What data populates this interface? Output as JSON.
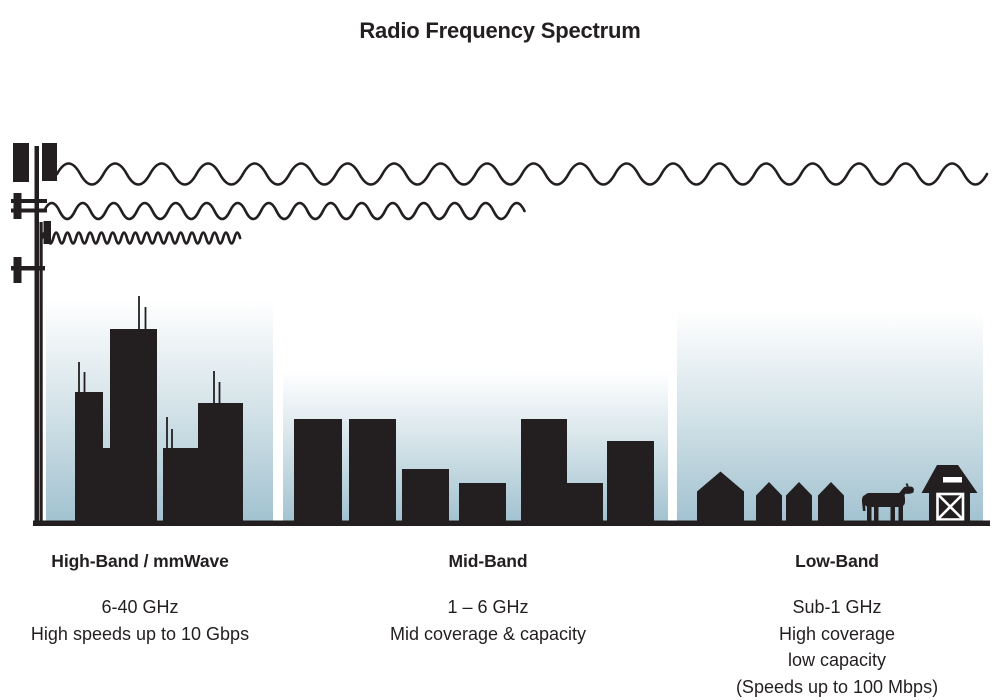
{
  "title": "Radio Frequency Spectrum",
  "colors": {
    "ink": "#231f20",
    "sky_top": "#ffffff",
    "sky_mid": "#d7e5ea",
    "sky_bottom": "#a2c2d0"
  },
  "bands": [
    {
      "name": "High-Band / mmWave",
      "frequency": "6-40 GHz",
      "details": [
        "High speeds up to 10 Gbps"
      ],
      "scene": "dense-city-skyline",
      "wave": "short-wavelength-high-frequency"
    },
    {
      "name": "Mid-Band",
      "frequency": "1 – 6 GHz",
      "details": [
        "Mid coverage & capacity"
      ],
      "scene": "mid-size-buildings",
      "wave": "medium-wavelength-medium-frequency"
    },
    {
      "name": "Low-Band",
      "frequency": "Sub-1 GHz",
      "details": [
        "High coverage",
        "low capacity",
        "(Speeds up to 100 Mbps)"
      ],
      "scene": "rural-farm-houses-cow-barn",
      "wave": "long-wavelength-low-frequency"
    }
  ]
}
